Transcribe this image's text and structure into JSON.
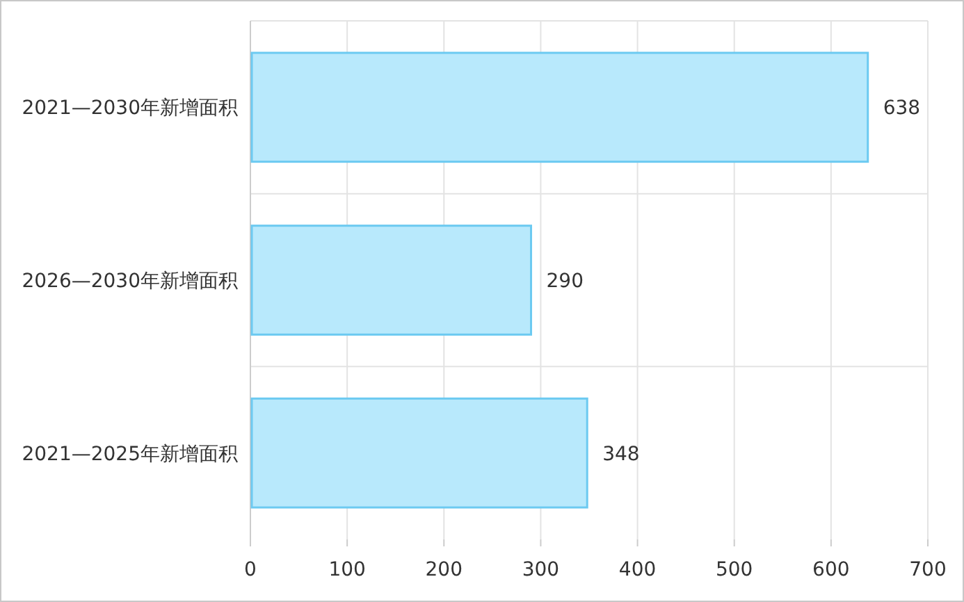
{
  "chart_data": {
    "type": "bar",
    "orientation": "horizontal",
    "categories": [
      "2021—2030年新增面积",
      "2026—2030年新增面积",
      "2021—2025年新增面积"
    ],
    "values": [
      638,
      290,
      348
    ],
    "color": "#b8e9fc",
    "xlim": [
      0,
      700
    ],
    "xticks": [
      0,
      100,
      200,
      300,
      400,
      500,
      600,
      700
    ],
    "grid": true,
    "data_labels": true
  }
}
